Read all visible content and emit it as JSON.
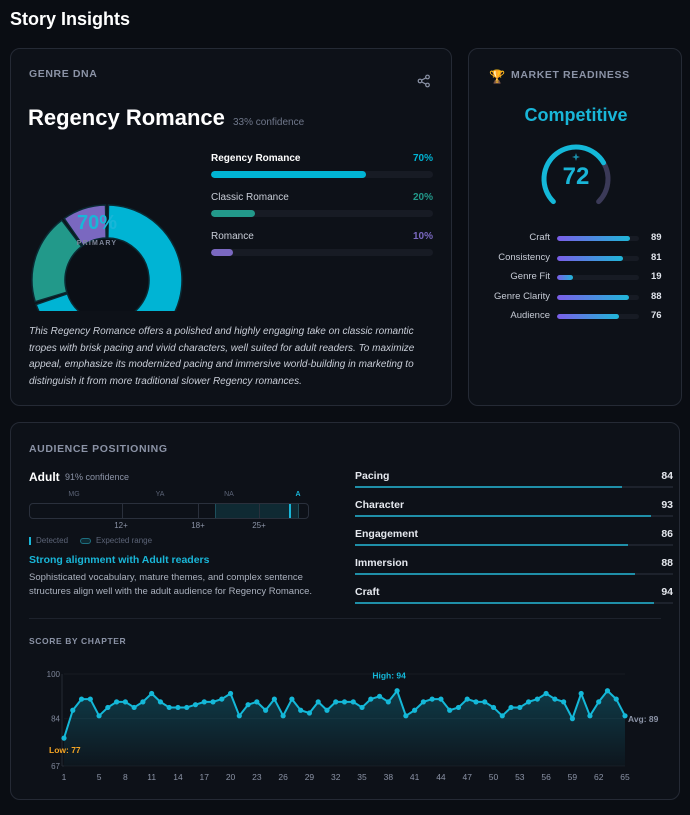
{
  "page_title": "Story Insights",
  "genre_dna": {
    "section_label": "GENRE DNA",
    "share_icon": "share-icon",
    "primary_genre": "Regency Romance",
    "confidence": "33% confidence",
    "donut_center_value": "70%",
    "donut_center_label": "PRIMARY",
    "genres": [
      {
        "name": "Regency Romance",
        "percent_label": "70%",
        "percent": 70,
        "color": "#00b4d4"
      },
      {
        "name": "Classic Romance",
        "percent_label": "20%",
        "percent": 20,
        "color": "#22998a"
      },
      {
        "name": "Romance",
        "percent_label": "10%",
        "percent": 10,
        "color": "#7a68c0"
      }
    ],
    "description": "This Regency Romance offers a polished and highly engaging take on classic romantic tropes with brisk pacing and vivid characters, well suited for adult readers. To maximize appeal, emphasize its modernized pacing and immersive world-building in marketing to distinguish it from more traditional slower Regency romances."
  },
  "market_readiness": {
    "section_label": "MARKET READINESS",
    "icon": "trophy-icon",
    "verdict": "Competitive",
    "score": "72",
    "score_value": 72,
    "metrics": [
      {
        "label": "Craft",
        "value": "89"
      },
      {
        "label": "Consistency",
        "value": "81"
      },
      {
        "label": "Genre Fit",
        "value": "19"
      },
      {
        "label": "Genre Clarity",
        "value": "88"
      },
      {
        "label": "Audience",
        "value": "76"
      }
    ]
  },
  "audience": {
    "section_label": "AUDIENCE POSITIONING",
    "detected": "Adult",
    "confidence": "91% confidence",
    "scale_labels": [
      "MG",
      "YA",
      "NA",
      "A"
    ],
    "age_labels": [
      "12+",
      "18+",
      "25+"
    ],
    "legend_detected": "Detected",
    "legend_expected": "Expected range",
    "headline": "Strong alignment with Adult readers",
    "body": "Sophisticated vocabulary, mature themes, and complex sentence structures align well with the adult audience for Regency Romance.",
    "metrics": [
      {
        "label": "Pacing",
        "value": "84"
      },
      {
        "label": "Character",
        "value": "93"
      },
      {
        "label": "Engagement",
        "value": "86"
      },
      {
        "label": "Immersion",
        "value": "88"
      },
      {
        "label": "Craft",
        "value": "94"
      }
    ]
  },
  "chart_data": {
    "type": "line",
    "title": "SCORE BY CHAPTER",
    "ylim": [
      67,
      100
    ],
    "yticks": [
      "100",
      "84",
      "67"
    ],
    "xticks": [
      "1",
      "5",
      "8",
      "11",
      "14",
      "17",
      "20",
      "23",
      "26",
      "29",
      "32",
      "35",
      "38",
      "41",
      "44",
      "47",
      "50",
      "53",
      "56",
      "59",
      "62",
      "65"
    ],
    "x": [
      1,
      2,
      3,
      4,
      5,
      6,
      7,
      8,
      9,
      10,
      11,
      12,
      13,
      14,
      15,
      16,
      17,
      18,
      19,
      20,
      21,
      22,
      23,
      24,
      25,
      26,
      27,
      28,
      29,
      30,
      31,
      32,
      33,
      34,
      35,
      36,
      37,
      38,
      39,
      40,
      41,
      42,
      43,
      44,
      45,
      46,
      47,
      48,
      49,
      50,
      51,
      52,
      53,
      54,
      55,
      56,
      57,
      58,
      59,
      60,
      61,
      62,
      63,
      64,
      65
    ],
    "values": [
      77,
      87,
      91,
      91,
      85,
      88,
      90,
      90,
      88,
      90,
      93,
      90,
      88,
      88,
      88,
      89,
      90,
      90,
      91,
      93,
      85,
      89,
      90,
      87,
      91,
      85,
      91,
      87,
      86,
      90,
      87,
      90,
      90,
      90,
      88,
      91,
      92,
      90,
      94,
      85,
      87,
      90,
      91,
      91,
      87,
      88,
      91,
      90,
      90,
      88,
      85,
      88,
      88,
      90,
      91,
      93,
      91,
      90,
      84,
      93,
      85,
      90,
      94,
      91,
      85
    ],
    "annotations": {
      "high": "High: 94",
      "low": "Low: 77",
      "avg": "Avg: 89"
    },
    "line_color": "#14b8d8",
    "low_color": "#f5a524"
  }
}
